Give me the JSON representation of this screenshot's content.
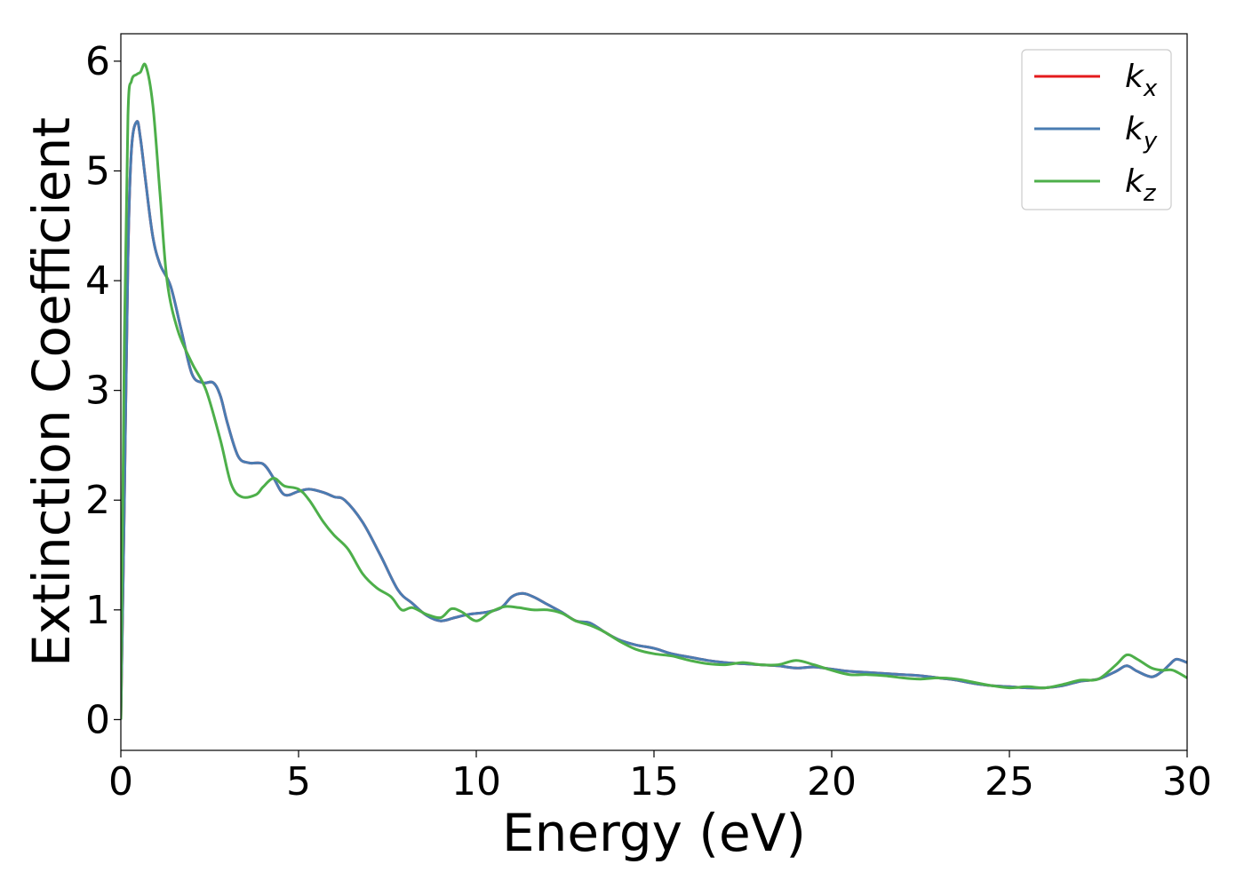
{
  "chart_data": {
    "type": "line",
    "xlabel": "Energy (eV)",
    "ylabel": "Extinction Coefficient",
    "xlim": [
      0,
      30
    ],
    "ylim": [
      -0.28,
      6.25
    ],
    "xticks": [
      0,
      5,
      10,
      15,
      20,
      25,
      30
    ],
    "yticks": [
      0,
      1,
      2,
      3,
      4,
      5,
      6
    ],
    "grid": false,
    "legend_position": "top-right",
    "series": [
      {
        "name": "k_x",
        "label_base": "k",
        "label_sub": "x",
        "color": "#e41a1c",
        "x": [
          0,
          0.1,
          0.2,
          0.3,
          0.45,
          0.55,
          0.7,
          0.9,
          1.1,
          1.4,
          1.7,
          2.0,
          2.3,
          2.6,
          2.8,
          3.0,
          3.3,
          3.6,
          4.0,
          4.3,
          4.6,
          5.0,
          5.3,
          5.7,
          6.0,
          6.3,
          6.8,
          7.3,
          7.8,
          8.2,
          8.6,
          9.0,
          9.4,
          9.8,
          10.3,
          10.7,
          11.0,
          11.3,
          11.6,
          12.0,
          12.4,
          12.8,
          13.2,
          13.6,
          14.0,
          14.5,
          15.0,
          15.5,
          16.0,
          16.5,
          17.0,
          17.5,
          18.0,
          18.5,
          19.0,
          19.5,
          20.0,
          20.5,
          21.0,
          21.5,
          22.0,
          22.5,
          23.0,
          23.5,
          24.0,
          24.5,
          25.0,
          25.5,
          26.0,
          26.5,
          27.0,
          27.5,
          28.0,
          28.3,
          28.6,
          29.0,
          29.3,
          29.5,
          29.7,
          30.0
        ],
        "y": [
          0,
          2.0,
          4.2,
          5.2,
          5.45,
          5.3,
          4.9,
          4.4,
          4.15,
          3.95,
          3.55,
          3.15,
          3.07,
          3.07,
          2.95,
          2.7,
          2.4,
          2.34,
          2.33,
          2.2,
          2.05,
          2.08,
          2.1,
          2.07,
          2.03,
          2.0,
          1.8,
          1.5,
          1.18,
          1.06,
          0.95,
          0.9,
          0.93,
          0.96,
          0.98,
          1.02,
          1.12,
          1.15,
          1.12,
          1.05,
          0.98,
          0.9,
          0.88,
          0.8,
          0.73,
          0.68,
          0.65,
          0.6,
          0.57,
          0.54,
          0.52,
          0.51,
          0.5,
          0.49,
          0.47,
          0.48,
          0.46,
          0.44,
          0.43,
          0.42,
          0.41,
          0.4,
          0.38,
          0.36,
          0.33,
          0.31,
          0.3,
          0.29,
          0.29,
          0.31,
          0.35,
          0.37,
          0.44,
          0.49,
          0.44,
          0.39,
          0.44,
          0.5,
          0.55,
          0.52
        ]
      },
      {
        "name": "k_y",
        "label_base": "k",
        "label_sub": "y",
        "color": "#4a7cb2",
        "x": [
          0,
          0.1,
          0.2,
          0.3,
          0.45,
          0.55,
          0.7,
          0.9,
          1.1,
          1.4,
          1.7,
          2.0,
          2.3,
          2.6,
          2.8,
          3.0,
          3.3,
          3.6,
          4.0,
          4.3,
          4.6,
          5.0,
          5.3,
          5.7,
          6.0,
          6.3,
          6.8,
          7.3,
          7.8,
          8.2,
          8.6,
          9.0,
          9.4,
          9.8,
          10.3,
          10.7,
          11.0,
          11.3,
          11.6,
          12.0,
          12.4,
          12.8,
          13.2,
          13.6,
          14.0,
          14.5,
          15.0,
          15.5,
          16.0,
          16.5,
          17.0,
          17.5,
          18.0,
          18.5,
          19.0,
          19.5,
          20.0,
          20.5,
          21.0,
          21.5,
          22.0,
          22.5,
          23.0,
          23.5,
          24.0,
          24.5,
          25.0,
          25.5,
          26.0,
          26.5,
          27.0,
          27.5,
          28.0,
          28.3,
          28.6,
          29.0,
          29.3,
          29.5,
          29.7,
          30.0
        ],
        "y": [
          0,
          2.0,
          4.2,
          5.2,
          5.45,
          5.3,
          4.9,
          4.4,
          4.15,
          3.95,
          3.55,
          3.15,
          3.07,
          3.07,
          2.95,
          2.7,
          2.4,
          2.34,
          2.33,
          2.2,
          2.05,
          2.08,
          2.1,
          2.07,
          2.03,
          2.0,
          1.8,
          1.5,
          1.18,
          1.06,
          0.95,
          0.9,
          0.93,
          0.96,
          0.98,
          1.02,
          1.12,
          1.15,
          1.12,
          1.05,
          0.98,
          0.9,
          0.88,
          0.8,
          0.73,
          0.68,
          0.65,
          0.6,
          0.57,
          0.54,
          0.52,
          0.51,
          0.5,
          0.49,
          0.47,
          0.48,
          0.46,
          0.44,
          0.43,
          0.42,
          0.41,
          0.4,
          0.38,
          0.36,
          0.33,
          0.31,
          0.3,
          0.29,
          0.29,
          0.31,
          0.35,
          0.37,
          0.44,
          0.49,
          0.44,
          0.39,
          0.44,
          0.5,
          0.55,
          0.52
        ]
      },
      {
        "name": "k_z",
        "label_base": "k",
        "label_sub": "z",
        "color": "#4daf4a",
        "x": [
          0,
          0.1,
          0.2,
          0.3,
          0.45,
          0.55,
          0.7,
          0.9,
          1.1,
          1.3,
          1.6,
          2.0,
          2.4,
          2.8,
          3.1,
          3.4,
          3.8,
          4.0,
          4.3,
          4.6,
          5.0,
          5.3,
          5.7,
          6.0,
          6.4,
          6.8,
          7.2,
          7.6,
          7.9,
          8.2,
          8.6,
          9.0,
          9.3,
          9.6,
          10.0,
          10.4,
          10.8,
          11.2,
          11.6,
          12.0,
          12.4,
          12.8,
          13.2,
          13.6,
          14.0,
          14.5,
          15.0,
          15.5,
          16.0,
          16.5,
          17.0,
          17.5,
          18.0,
          18.5,
          19.0,
          19.5,
          20.0,
          20.5,
          21.0,
          21.5,
          22.0,
          22.5,
          23.0,
          23.5,
          24.0,
          24.5,
          25.0,
          25.5,
          26.0,
          26.5,
          27.0,
          27.5,
          28.0,
          28.3,
          28.6,
          29.0,
          29.3,
          29.6,
          30.0
        ],
        "y": [
          0,
          3.5,
          5.5,
          5.82,
          5.88,
          5.9,
          5.96,
          5.6,
          4.8,
          4.0,
          3.55,
          3.25,
          3.0,
          2.55,
          2.15,
          2.03,
          2.05,
          2.12,
          2.2,
          2.13,
          2.1,
          2.0,
          1.8,
          1.68,
          1.55,
          1.33,
          1.2,
          1.12,
          1.0,
          1.02,
          0.96,
          0.93,
          1.01,
          0.98,
          0.9,
          0.98,
          1.03,
          1.02,
          1.0,
          1.0,
          0.97,
          0.9,
          0.86,
          0.8,
          0.72,
          0.64,
          0.6,
          0.58,
          0.54,
          0.51,
          0.5,
          0.52,
          0.5,
          0.5,
          0.54,
          0.5,
          0.45,
          0.41,
          0.41,
          0.4,
          0.38,
          0.37,
          0.38,
          0.37,
          0.34,
          0.31,
          0.29,
          0.3,
          0.29,
          0.32,
          0.36,
          0.37,
          0.5,
          0.59,
          0.55,
          0.47,
          0.45,
          0.45,
          0.38
        ]
      }
    ]
  }
}
